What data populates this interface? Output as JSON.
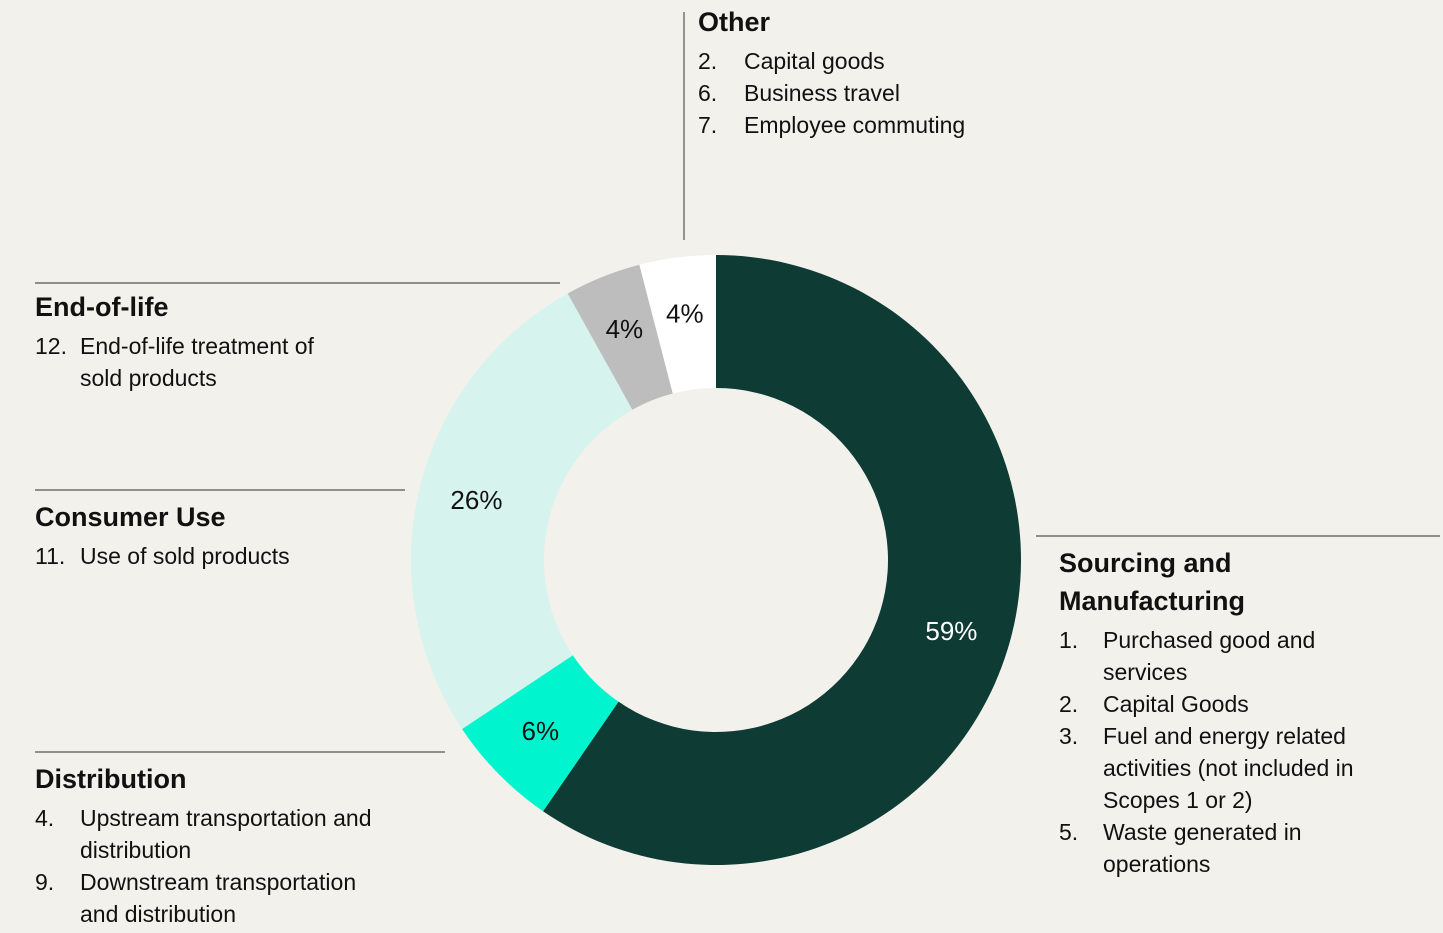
{
  "chart_data": {
    "type": "pie",
    "donut": true,
    "values": [
      59,
      6,
      26,
      4,
      4
    ],
    "value_labels": [
      "59%",
      "6%",
      "26%",
      "4%",
      "4%"
    ],
    "colors": [
      "#0e3b34",
      "#00f5cf",
      "#d6f3ee",
      "#bdbdbd",
      "#ffffff"
    ],
    "label_colors": [
      "#ffffff",
      "#111111",
      "#111111",
      "#111111",
      "#111111"
    ],
    "annotations": [
      {
        "title": "Sourcing and Manufacturing",
        "items": [
          {
            "number": "1.",
            "text": "Purchased good and services"
          },
          {
            "number": "2.",
            "text": "Capital Goods"
          },
          {
            "number": "3.",
            "text": "Fuel and energy related activities (not included in Scopes 1 or 2)"
          },
          {
            "number": "5.",
            "text": "Waste generated in operations"
          }
        ]
      },
      {
        "title": "Distribution",
        "items": [
          {
            "number": "4.",
            "text": "Upstream transportation and distribution"
          },
          {
            "number": "9.",
            "text": "Downstream transportation and distribution"
          }
        ]
      },
      {
        "title": "Consumer Use",
        "items": [
          {
            "number": "11.",
            "text": "Use of sold products"
          }
        ]
      },
      {
        "title": "End-of-life",
        "items": [
          {
            "number": "12.",
            "text": "End-of-life treatment of sold products"
          }
        ]
      },
      {
        "title": "Other",
        "items": [
          {
            "number": "2.",
            "text": "Capital goods"
          },
          {
            "number": "6.",
            "text": "Business travel"
          },
          {
            "number": "7.",
            "text": "Employee commuting"
          }
        ]
      }
    ]
  }
}
